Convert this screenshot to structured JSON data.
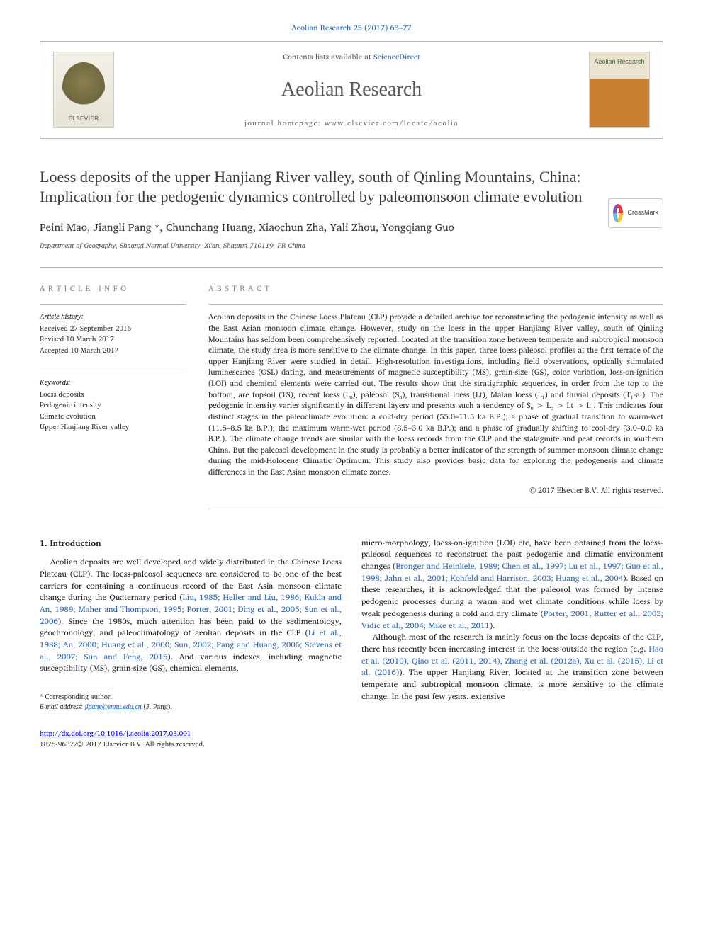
{
  "journal_ref": "Aeolian Research 25 (2017) 63–77",
  "header": {
    "contents_pre": "Contents lists available at ",
    "contents_link": "ScienceDirect",
    "journal_name": "Aeolian Research",
    "homepage": "journal homepage: www.elsevier.com/locate/aeolia",
    "elsevier_caption": "ELSEVIER",
    "cover_label": "Aeolian\nResearch"
  },
  "crossmark_label": "CrossMark",
  "article": {
    "title": "Loess deposits of the upper Hanjiang River valley, south of Qinling Mountains, China: Implication for the pedogenic dynamics controlled by paleomonsoon climate evolution",
    "authors": "Peini Mao, Jiangli Pang *, Chunchang Huang, Xiaochun Zha, Yali Zhou, Yongqiang Guo",
    "affiliation": "Department of Geography, Shaanxi Normal University, Xi'an, Shaanxi 710119, PR China"
  },
  "article_info_heading": "ARTICLE INFO",
  "abstract_heading": "ABSTRACT",
  "history": {
    "label": "Article history:",
    "received": "Received 27 September 2016",
    "revised": "Revised 10 March 2017",
    "accepted": "Accepted 10 March 2017"
  },
  "keywords": {
    "label": "Keywords:",
    "items": [
      "Loess deposits",
      "Pedogenic intensity",
      "Climate evolution",
      "Upper Hanjiang River valley"
    ]
  },
  "abstract_body": "Aeolian deposits in the Chinese Loess Plateau (CLP) provide a detailed archive for reconstructing the pedogenic intensity as well as the East Asian monsoon climate change. However, study on the loess in the upper Hanjiang River valley, south of Qinling Mountains has seldom been comprehensively reported. Located at the transition zone between temperate and subtropical monsoon climate, the study area is more sensitive to the climate change. In this paper, three loess-paleosol profiles at the first terrace of the upper Hanjiang River were studied in detail. High-resolution investigations, including field observations, optically stimulated luminescence (OSL) dating, and measurements of magnetic susceptibility (MS), grain-size (GS), color variation, loss-on-ignition (LOI) and chemical elements were carried out. The results show that the stratigraphic sequences, in order from the top to the bottom, are topsoil (TS), recent loess (L₀), paleosol (S₀), transitional loess (Lt), Malan loess (L₁) and fluvial deposits (T₁-al). The pedogenic intensity varies significantly in different layers and presents such a tendency of S₀ > L₀ > Lt > L₁. This indicates four distinct stages in the paleoclimate evolution: a cold-dry period (55.0–11.5 ka B.P.); a phase of gradual transition to warm-wet (11.5–8.5 ka B.P.); the maximum warm-wet period (8.5–3.0 ka B.P.); and a phase of gradually shifting to cool-dry (3.0–0.0 ka B.P.). The climate change trends are similar with the loess records from the CLP and the stalagmite and peat records in southern China. But the paleosol development in the study is probably a better indicator of the strength of summer monsoon climate change during the mid-Holocene Climatic Optimum. This study also provides basic data for exploring the pedogenesis and climate differences in the East Asian monsoon climate zones.",
  "copyright": "© 2017 Elsevier B.V. All rights reserved.",
  "intro": {
    "heading": "1. Introduction",
    "col1_p1_a": "Aeolian deposits are well developed and widely distributed in the Chinese Loess Plateau (CLP). The loess-paleosol sequences are considered to be one of the best carriers for containing a continuous record of the East Asia monsoon climate change during the Quaternary period (",
    "cite_1": "Liu, 1985; Heller and Liu, 1986; Kukla and An, 1989; Maher and Thompson, 1995; Porter, 2001; Ding et al., 2005; Sun et al., 2006",
    "col1_p1_b": "). Since the 1980s, much attention has been paid to the sedimentology, geochronology, and paleoclimatology of aeolian deposits in the CLP (",
    "cite_2": "Li et al., 1988; An, 2000; Huang et al., 2000; Sun, 2002; Pang and Huang, 2006; Stevens et al., 2007; Sun and Feng, 2015",
    "col1_p1_c": "). And various indexes, including magnetic susceptibility (MS), grain-size (GS), chemical elements,",
    "col2_p1_a": "micro-morphology, loess-on-ignition (LOI) etc, have been obtained from the loess-paleosol sequences to reconstruct the past pedogenic and climatic environment changes (",
    "cite_3": "Bronger and Heinkele, 1989; Chen et al., 1997; Lu et al., 1997; Guo et al., 1998; Jahn et al., 2001; Kohfeld and Harrison, 2003; Huang et al., 2004",
    "col2_p1_b": "). Based on these researches, it is acknowledged that the paleosol was formed by intense pedogenic processes during a warm and wet climate conditions while loess by weak pedogenesis during a cold and dry climate (",
    "cite_4": "Porter, 2001; Rutter et al., 2003; Vidic et al., 2004; Mike et al., 2011",
    "col2_p1_c": ").",
    "col2_p2_a": "Although most of the research is mainly focus on the loess deposits of the CLP, there has recently been increasing interest in the loess outside the region (e.g. ",
    "cite_5": "Hao et al. (2010), Qiao et al. (2011, 2014), Zhang et al. (2012a), Xu et al. (2015), Li et al. (2016)",
    "col2_p2_b": "). The upper Hanjiang River, located at the transition zone between temperate and subtropical monsoon climate, is more sensitive to the climate change. In the past few years, extensive"
  },
  "footnote": {
    "corr_label": "* Corresponding author.",
    "email_label": "E-mail address: ",
    "email": "jlpang@snnu.edu.cn",
    "email_suffix": " (J. Pang)."
  },
  "doi": "http://dx.doi.org/10.1016/j.aeolia.2017.03.001",
  "issn_line": "1875-9637/© 2017 Elsevier B.V. All rights reserved.",
  "colors": {
    "link": "#2a64c0",
    "rule": "#b8b8b8",
    "text": "#2d2d2d",
    "heading_gray": "#8a8a8a"
  }
}
